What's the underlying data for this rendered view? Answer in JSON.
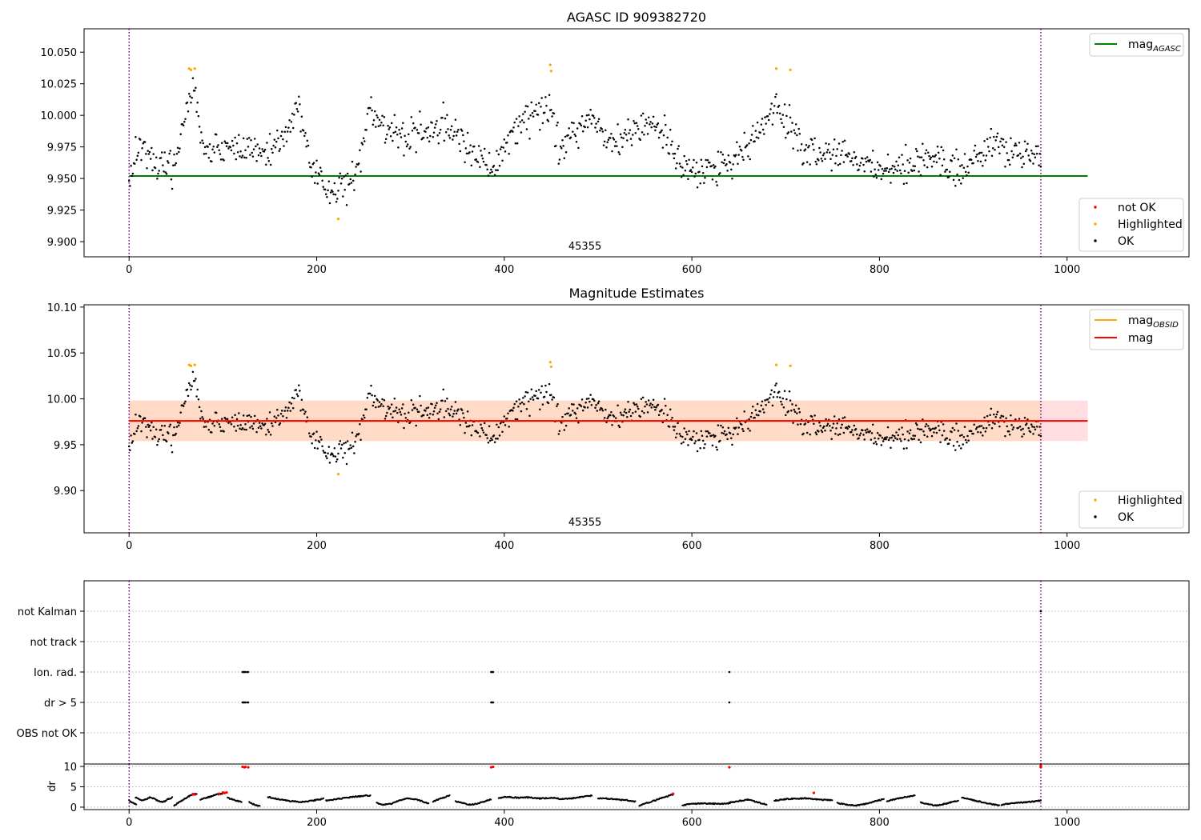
{
  "figure": {
    "width": 1500,
    "height": 1050,
    "colors": {
      "ok": "#000000",
      "highlighted": "#ffa500",
      "not_ok": "#ff0000",
      "agasc_line": "#008000",
      "obsid_line": "#ffa500",
      "mag_line": "#ff0000",
      "band_outer": "#ffdde1",
      "band_inner": "#ffdac6",
      "obs_boundary": "#800080",
      "grid": "#b0b0b0"
    }
  },
  "chart_data": [
    {
      "type": "scatter",
      "title": "AGASC ID 909382720",
      "xlabel": "",
      "ylabel": "",
      "xlim": [
        -48,
        1130
      ],
      "ylim": [
        9.888,
        10.0685
      ],
      "xticks": [
        0,
        200,
        400,
        600,
        800,
        1000
      ],
      "yticks": [
        9.9,
        9.925,
        9.95,
        9.975,
        10.0,
        10.025,
        10.05
      ],
      "ytick_labels": [
        "9.900",
        "9.925",
        "9.950",
        "9.975",
        "10.000",
        "10.025",
        "10.050"
      ],
      "obs_boundaries": [
        0,
        972
      ],
      "obsid_label": {
        "text": "45355",
        "x": 486
      },
      "series_summary": {
        "n_points": 972,
        "x_range": [
          0,
          972
        ],
        "y_min": 9.917,
        "y_max": 10.04
      },
      "reference_lines": [
        {
          "name": "magAGASC",
          "y": 9.952,
          "x_range": [
            0,
            1022
          ]
        }
      ],
      "highlighted_points": [
        {
          "x": 64,
          "y": 10.037
        },
        {
          "x": 66,
          "y": 10.036
        },
        {
          "x": 70,
          "y": 10.037
        },
        {
          "x": 449,
          "y": 10.04
        },
        {
          "x": 450,
          "y": 10.035
        },
        {
          "x": 690,
          "y": 10.037
        },
        {
          "x": 705,
          "y": 10.036
        },
        {
          "x": 223,
          "y": 9.918
        }
      ],
      "legends": [
        {
          "position": "upper right",
          "items": [
            {
              "label": "mag",
              "sub": "AGASC",
              "kind": "line",
              "color": "#008000"
            }
          ]
        },
        {
          "position": "lower right",
          "items": [
            {
              "label": "not OK",
              "kind": "dot",
              "color": "#ff0000"
            },
            {
              "label": "Highlighted",
              "kind": "dot",
              "color": "#ffa500"
            },
            {
              "label": "OK",
              "kind": "dot",
              "color": "#000000"
            }
          ]
        }
      ],
      "grid": false
    },
    {
      "type": "scatter",
      "title": "Magnitude Estimates",
      "xlabel": "",
      "ylabel": "",
      "xlim": [
        -48,
        1130
      ],
      "ylim": [
        9.854,
        10.1025
      ],
      "xticks": [
        0,
        200,
        400,
        600,
        800,
        1000
      ],
      "yticks": [
        9.9,
        9.95,
        10.0,
        10.05,
        10.1
      ],
      "ytick_labels": [
        "9.90",
        "9.95",
        "10.00",
        "10.05",
        "10.10"
      ],
      "obs_boundaries": [
        0,
        972
      ],
      "obsid_label": {
        "text": "45355",
        "x": 486
      },
      "series_summary": {
        "n_points": 972,
        "x_range": [
          0,
          972
        ],
        "y_min": 9.917,
        "y_max": 10.04
      },
      "reference_lines": [
        {
          "name": "magOBSID",
          "y": 9.976,
          "x_range": [
            0,
            972
          ]
        },
        {
          "name": "mag",
          "y": 9.976,
          "x_range": [
            0,
            1022
          ]
        }
      ],
      "bands": [
        {
          "y_range": [
            9.954,
            9.998
          ],
          "x_range": [
            0,
            1022
          ],
          "color": "#ffdde1"
        },
        {
          "y_range": [
            9.954,
            9.998
          ],
          "x_range": [
            0,
            972
          ],
          "color": "#ffdac6"
        }
      ],
      "highlighted_points": [
        {
          "x": 64,
          "y": 10.037
        },
        {
          "x": 66,
          "y": 10.036
        },
        {
          "x": 70,
          "y": 10.037
        },
        {
          "x": 449,
          "y": 10.04
        },
        {
          "x": 450,
          "y": 10.035
        },
        {
          "x": 690,
          "y": 10.037
        },
        {
          "x": 705,
          "y": 10.036
        },
        {
          "x": 223,
          "y": 9.918
        }
      ],
      "legends": [
        {
          "position": "upper right",
          "items": [
            {
              "label": "mag",
              "sub": "OBSID",
              "kind": "line",
              "color": "#ffa500"
            },
            {
              "label": "mag",
              "kind": "line",
              "color": "#ff0000"
            }
          ]
        },
        {
          "position": "lower right",
          "items": [
            {
              "label": "Highlighted",
              "kind": "dot",
              "color": "#ffa500"
            },
            {
              "label": "OK",
              "kind": "dot",
              "color": "#000000"
            }
          ]
        }
      ],
      "grid": false
    },
    {
      "type": "scatter",
      "title": "",
      "xlabel": "",
      "ylabel": "",
      "xlim": [
        -48,
        1130
      ],
      "categories": [
        "not Kalman",
        "not track",
        "Ion. rad.",
        "dr > 5",
        "OBS not OK"
      ],
      "obs_boundaries": [
        0,
        972
      ],
      "flags": {
        "not Kalman": [
          972
        ],
        "not track": [],
        "Ion. rad.": [
          121,
          122,
          123,
          124,
          126,
          127,
          386,
          387,
          388,
          640
        ],
        "dr > 5": [
          121,
          122,
          123,
          124,
          126,
          127,
          386,
          387,
          388,
          640
        ],
        "OBS not OK": []
      },
      "grid": true
    },
    {
      "type": "line",
      "title": "",
      "xlabel": "",
      "ylabel": "dr",
      "xlim": [
        -48,
        1130
      ],
      "ylim": [
        -0.6,
        10.6
      ],
      "xticks": [
        0,
        200,
        400,
        600,
        800,
        1000
      ],
      "yticks": [
        0,
        5,
        10
      ],
      "ytick_labels": [
        "0",
        "5",
        "10"
      ],
      "obs_boundaries": [
        0,
        972
      ],
      "dr_segments": [
        {
          "x": [
            0,
            2,
            4,
            6,
            8
          ],
          "y": [
            1.7,
            1.3,
            1.0,
            0.8,
            0.6
          ]
        },
        {
          "x": [
            7,
            10,
            14,
            18,
            22,
            26,
            30,
            34,
            38,
            42,
            46
          ],
          "y": [
            2.4,
            2.0,
            1.6,
            1.9,
            2.4,
            2.1,
            1.7,
            1.3,
            1.4,
            2.0,
            2.4
          ]
        },
        {
          "x": [
            48,
            52,
            56,
            60,
            64,
            68,
            72
          ],
          "y": [
            0.3,
            1.0,
            1.6,
            2.2,
            2.7,
            3.1,
            3.3
          ]
        },
        {
          "x": [
            76,
            82,
            88,
            94,
            100,
            104
          ],
          "y": [
            1.8,
            2.3,
            2.7,
            3.1,
            3.4,
            3.6
          ]
        },
        {
          "x": [
            105,
            110,
            115,
            120
          ],
          "y": [
            2.3,
            1.9,
            1.6,
            1.3
          ]
        },
        {
          "x": [
            128,
            132,
            136,
            140
          ],
          "y": [
            1.2,
            0.8,
            0.5,
            0.2
          ]
        },
        {
          "x": [
            148,
            160,
            172,
            184,
            196,
            208
          ],
          "y": [
            2.5,
            1.9,
            1.5,
            1.3,
            1.6,
            2.1
          ]
        },
        {
          "x": [
            210,
            222,
            234,
            246,
            258
          ],
          "y": [
            1.6,
            2.0,
            2.4,
            2.7,
            2.9
          ]
        },
        {
          "x": [
            264,
            272,
            280,
            288,
            296,
            304,
            312,
            320
          ],
          "y": [
            1.0,
            0.6,
            0.9,
            1.6,
            2.1,
            2.0,
            1.5,
            0.8
          ]
        },
        {
          "x": [
            324,
            330,
            336,
            342
          ],
          "y": [
            1.4,
            1.9,
            2.4,
            2.9
          ]
        },
        {
          "x": [
            348,
            356,
            364,
            372,
            380,
            386
          ],
          "y": [
            1.4,
            1.0,
            0.6,
            0.9,
            1.5,
            1.9
          ]
        },
        {
          "x": [
            394,
            402,
            414,
            426,
            438,
            450,
            462,
            474,
            486,
            494
          ],
          "y": [
            2.2,
            2.5,
            2.3,
            2.4,
            2.1,
            2.3,
            2.0,
            2.2,
            2.6,
            2.9
          ]
        },
        {
          "x": [
            500,
            510,
            520,
            530,
            540
          ],
          "y": [
            2.2,
            2.1,
            1.9,
            1.7,
            1.4
          ]
        },
        {
          "x": [
            544,
            552,
            560,
            568,
            576,
            580
          ],
          "y": [
            0.4,
            1.0,
            1.6,
            2.3,
            2.8,
            3.2
          ]
        },
        {
          "x": [
            590,
            600,
            610,
            620,
            630,
            640
          ],
          "y": [
            0.5,
            0.8,
            0.9,
            0.9,
            0.8,
            0.9
          ]
        },
        {
          "x": [
            640,
            650,
            660,
            670,
            680
          ],
          "y": [
            1.1,
            1.5,
            1.9,
            1.2,
            0.6
          ]
        },
        {
          "x": [
            688,
            700,
            712,
            724,
            736,
            750
          ],
          "y": [
            1.6,
            2.0,
            2.1,
            2.2,
            1.8,
            1.7
          ]
        },
        {
          "x": [
            755,
            765,
            775,
            785,
            795,
            805
          ],
          "y": [
            1.0,
            0.6,
            0.4,
            0.8,
            1.4,
            2.0
          ]
        },
        {
          "x": [
            808,
            818,
            828,
            838
          ],
          "y": [
            1.5,
            2.0,
            2.5,
            2.9
          ]
        },
        {
          "x": [
            844,
            852,
            860,
            868,
            876,
            884
          ],
          "y": [
            1.2,
            0.7,
            0.4,
            0.7,
            1.2,
            1.6
          ]
        },
        {
          "x": [
            888,
            898,
            908,
            918,
            928
          ],
          "y": [
            2.3,
            1.8,
            1.3,
            0.8,
            0.4
          ]
        },
        {
          "x": [
            930,
            940,
            950,
            960,
            972
          ],
          "y": [
            0.6,
            0.9,
            1.1,
            1.3,
            1.6
          ]
        }
      ],
      "red_points": [
        {
          "x": 68,
          "y": 3.2
        },
        {
          "x": 70,
          "y": 3.1
        },
        {
          "x": 96,
          "y": 3.3
        },
        {
          "x": 100,
          "y": 3.6
        },
        {
          "x": 102,
          "y": 3.5
        },
        {
          "x": 104,
          "y": 3.6
        },
        {
          "x": 121,
          "y": 9.9
        },
        {
          "x": 123,
          "y": 9.8
        },
        {
          "x": 124,
          "y": 9.9
        },
        {
          "x": 127,
          "y": 9.8
        },
        {
          "x": 386,
          "y": 9.8
        },
        {
          "x": 388,
          "y": 9.9
        },
        {
          "x": 580,
          "y": 3.3
        },
        {
          "x": 640,
          "y": 9.8
        },
        {
          "x": 730,
          "y": 3.5
        },
        {
          "x": 972,
          "y": 9.8
        },
        {
          "x": 972,
          "y": 10.2
        }
      ],
      "grid": true
    }
  ]
}
